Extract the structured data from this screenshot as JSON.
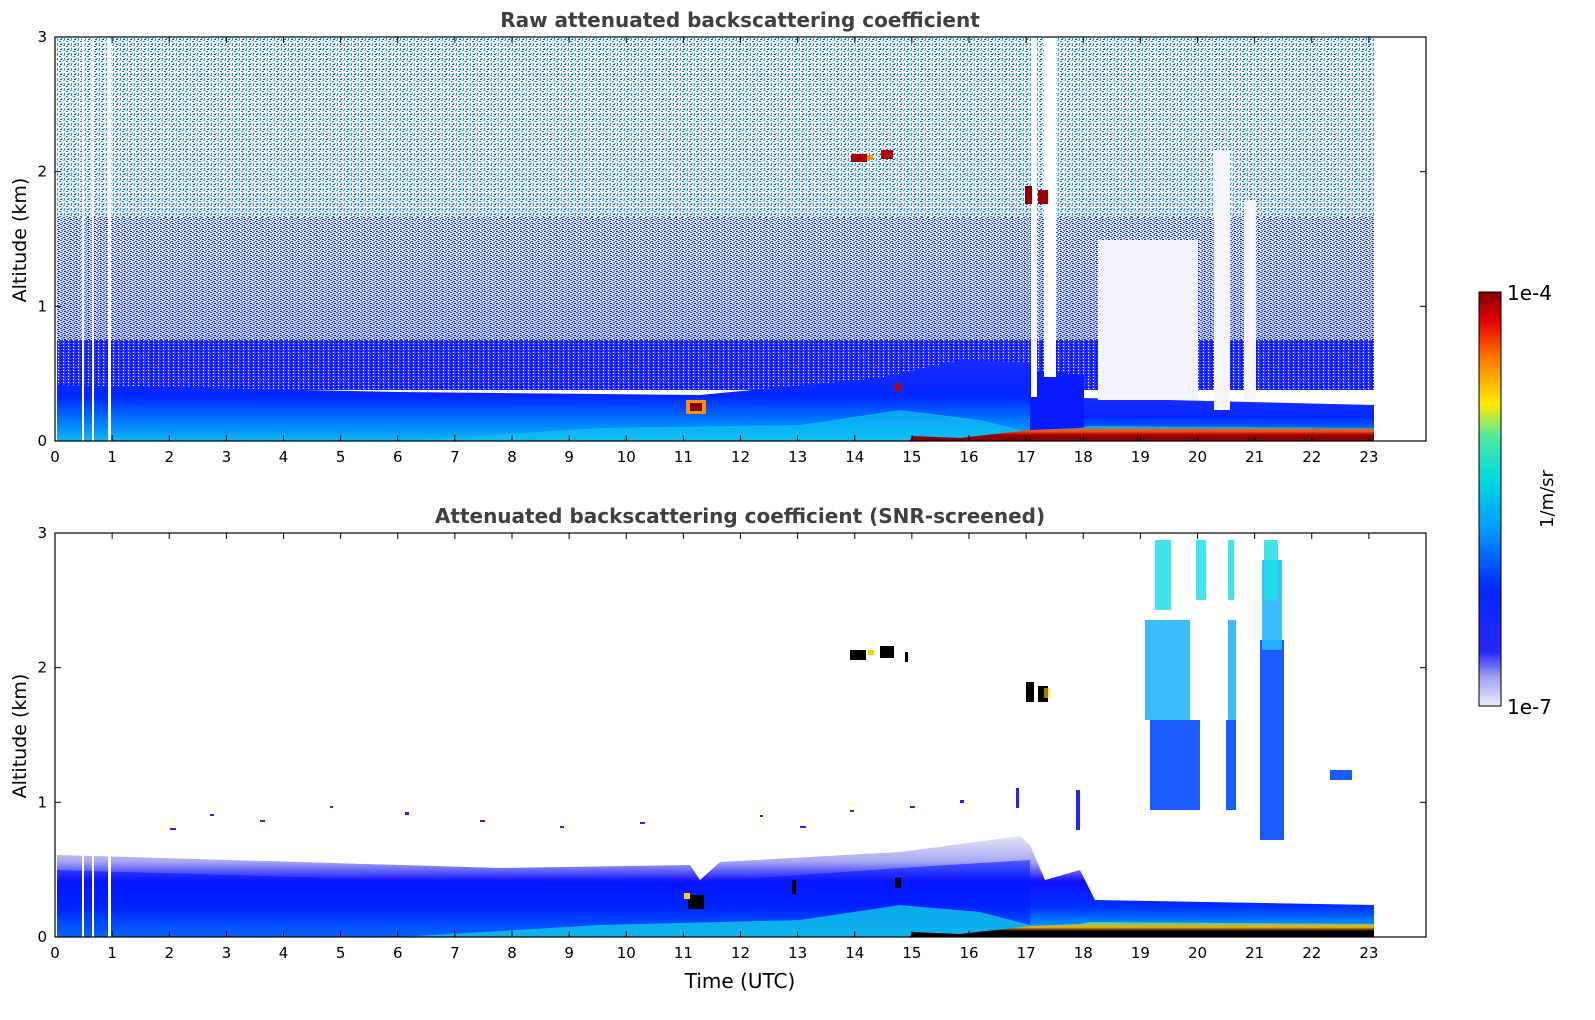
{
  "chart_data": [
    {
      "type": "heatmap",
      "title": "Raw attenuated backscattering coefficient",
      "xlabel": "",
      "ylabel": "Altitude (km)",
      "xlim": [
        0,
        24
      ],
      "ylim": [
        0,
        3
      ],
      "x_ticks": [
        "0",
        "1",
        "2",
        "3",
        "4",
        "5",
        "6",
        "7",
        "8",
        "9",
        "10",
        "11",
        "12",
        "13",
        "14",
        "15",
        "16",
        "17",
        "18",
        "19",
        "20",
        "21",
        "22",
        "23"
      ],
      "y_ticks": [
        "0",
        "1",
        "2",
        "3"
      ],
      "data_extent_hours": [
        0,
        23.1
      ],
      "features": [
        {
          "name": "boundary layer aerosol",
          "x": [
            0,
            23.1
          ],
          "y": [
            0,
            0.35
          ]
        },
        {
          "name": "cloud",
          "x": [
            14.0,
            14.7
          ],
          "y": [
            2.05,
            2.15
          ]
        },
        {
          "name": "cloud",
          "x": [
            17.05,
            17.35
          ],
          "y": [
            1.75,
            1.85
          ]
        },
        {
          "name": "fog / low cloud",
          "x": [
            15.2,
            23.1
          ],
          "y": [
            0.0,
            0.08
          ]
        }
      ]
    },
    {
      "type": "heatmap",
      "title": "Attenuated backscattering coefficient (SNR-screened)",
      "xlabel": "Time (UTC)",
      "ylabel": "Altitude (km)",
      "xlim": [
        0,
        24
      ],
      "ylim": [
        0,
        3
      ],
      "x_ticks": [
        "0",
        "1",
        "2",
        "3",
        "4",
        "5",
        "6",
        "7",
        "8",
        "9",
        "10",
        "11",
        "12",
        "13",
        "14",
        "15",
        "16",
        "17",
        "18",
        "19",
        "20",
        "21",
        "22",
        "23"
      ],
      "y_ticks": [
        "0",
        "1",
        "2",
        "3"
      ],
      "data_extent_hours": [
        0,
        23.1
      ],
      "features": [
        {
          "name": "boundary layer aerosol",
          "x": [
            0,
            23.1
          ],
          "y": [
            0,
            0.55
          ]
        },
        {
          "name": "cloud",
          "x": [
            14.0,
            14.9
          ],
          "y": [
            2.05,
            2.15
          ]
        },
        {
          "name": "cloud",
          "x": [
            17.0,
            17.4
          ],
          "y": [
            1.75,
            1.85
          ]
        },
        {
          "name": "fog / low cloud",
          "x": [
            15.2,
            23.1
          ],
          "y": [
            0.0,
            0.08
          ]
        },
        {
          "name": "elevated plumes",
          "x": [
            19.0,
            21.8
          ],
          "y": [
            0.9,
            3.0
          ]
        }
      ]
    }
  ],
  "colorbar": {
    "label": "1/m/sr",
    "max_label": "1e-4",
    "min_label": "1e-7",
    "scale": "log",
    "colormap": [
      "#e8e8f8",
      "#9898f0",
      "#0000ff",
      "#0096ff",
      "#00dcdc",
      "#ffeb00",
      "#ff7800",
      "#e60000",
      "#800000"
    ]
  }
}
